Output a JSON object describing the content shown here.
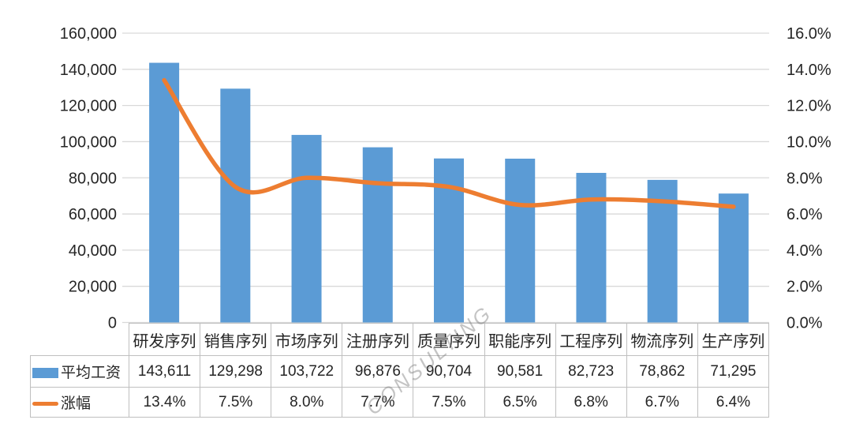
{
  "watermark": {
    "text": "CONSULTING"
  },
  "chart_data": {
    "type": "combo-bar-line",
    "title": "",
    "categories": [
      "研发序列",
      "销售序列",
      "市场序列",
      "注册序列",
      "质量序列",
      "职能序列",
      "工程序列",
      "物流序列",
      "生产序列"
    ],
    "series": [
      {
        "name": "平均工资",
        "type": "bar",
        "axis": "left",
        "values": [
          143611,
          129298,
          103722,
          96876,
          90704,
          90581,
          82723,
          78862,
          71295
        ],
        "labels": [
          "143,611",
          "129,298",
          "103,722",
          "96,876",
          "90,704",
          "90,581",
          "82,723",
          "78,862",
          "71,295"
        ],
        "color": "#5B9BD5"
      },
      {
        "name": "涨幅",
        "type": "line",
        "axis": "right",
        "values": [
          13.4,
          7.5,
          8.0,
          7.7,
          7.5,
          6.5,
          6.8,
          6.7,
          6.4
        ],
        "labels": [
          "13.4%",
          "7.5%",
          "8.0%",
          "7.7%",
          "7.5%",
          "6.5%",
          "6.8%",
          "6.7%",
          "6.4%"
        ],
        "color": "#ED7D31"
      }
    ],
    "left_axis": {
      "min": 0,
      "max": 160000,
      "step": 20000,
      "tick_labels": [
        "0",
        "20,000",
        "40,000",
        "60,000",
        "80,000",
        "100,000",
        "120,000",
        "140,000",
        "160,000"
      ]
    },
    "right_axis": {
      "min": 0,
      "max": 16,
      "step": 2,
      "tick_labels": [
        "0.0%",
        "2.0%",
        "4.0%",
        "6.0%",
        "8.0%",
        "10.0%",
        "12.0%",
        "14.0%",
        "16.0%"
      ]
    },
    "grid": true,
    "legend_position": "table-rows-left",
    "colors": {
      "bar": "#5B9BD5",
      "line": "#ED7D31",
      "grid": "#D9D9D9",
      "table_border": "#BFBFBF",
      "text": "#262626"
    }
  }
}
